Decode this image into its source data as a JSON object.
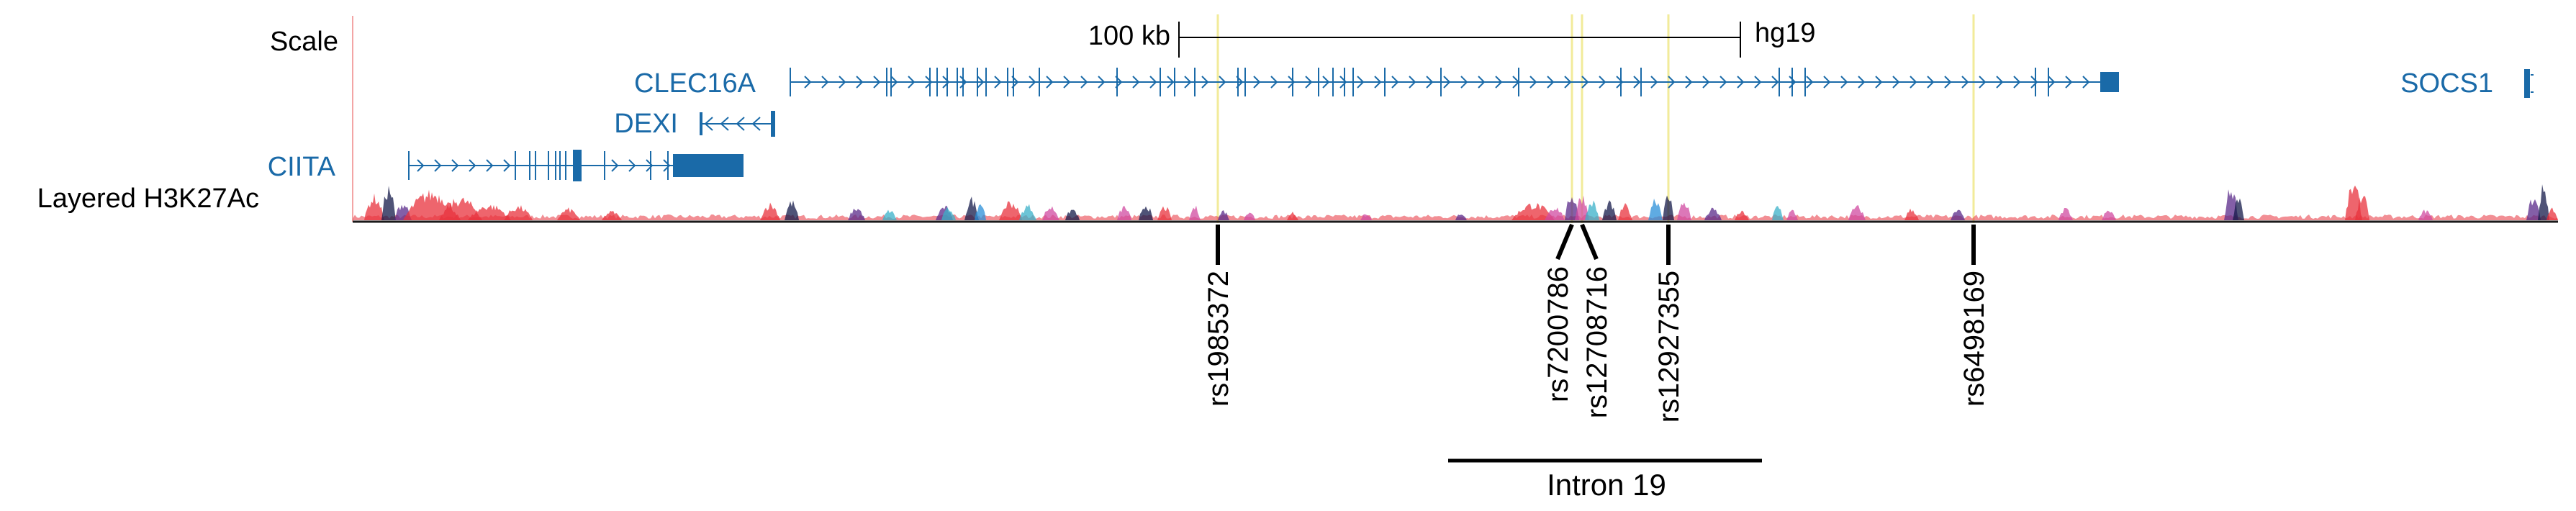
{
  "track_labels": {
    "scale": "Scale",
    "layered": "Layered H3K27Ac"
  },
  "scale_bar": {
    "label": "100 kb",
    "assembly": "hg19"
  },
  "genes": [
    {
      "name": "CLEC16A",
      "strand": "+"
    },
    {
      "name": "DEXI",
      "strand": "-"
    },
    {
      "name": "CIITA",
      "strand": "+"
    },
    {
      "name": "SOCS1",
      "strand": "-"
    }
  ],
  "snps": [
    "rs1985372",
    "rs7200786",
    "rs12708716",
    "rs12927355",
    "rs6498169"
  ],
  "region_label": "Intron 19",
  "colors": {
    "gene": "#1a6aa8",
    "highlight": "#f2eb9a",
    "baseline_line": "#f3a5a5",
    "signal_red": "#e8323c",
    "signal_blue": "#2a8fd8",
    "signal_purple": "#5a2a8a",
    "signal_pink": "#d04aa0",
    "signal_navy": "#141a4a",
    "signal_cyan": "#3ab0c8"
  }
}
